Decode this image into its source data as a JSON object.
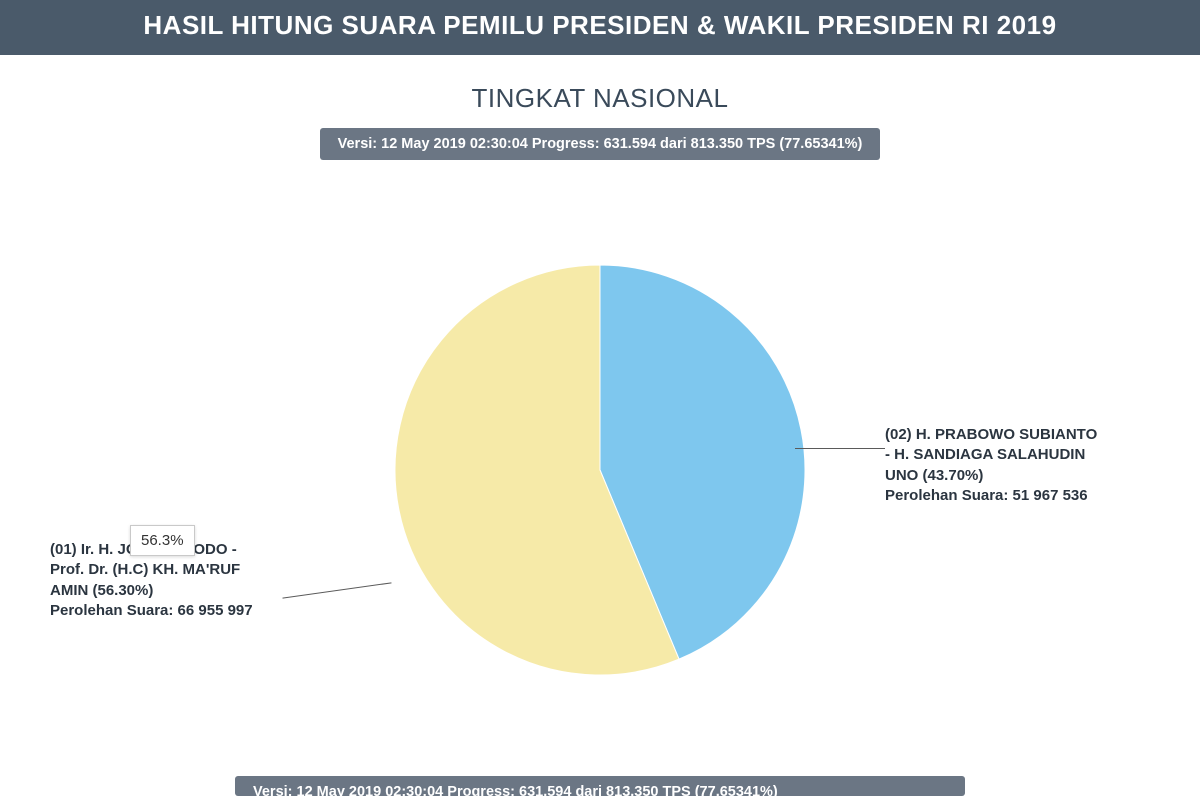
{
  "header": {
    "title": "HASIL HITUNG SUARA PEMILU PRESIDEN & WAKIL PRESIDEN RI 2019"
  },
  "subtitle": "TINGKAT NASIONAL",
  "progress_bar": {
    "text": "Versi: 12 May 2019 02:30:04 Progress: 631.594 dari 813.350 TPS (77.65341%)"
  },
  "pie_chart": {
    "type": "pie",
    "radius": 205,
    "background_color": "#ffffff",
    "stroke_color": "#ffffff",
    "stroke_width": 1,
    "slices": [
      {
        "id": "candidate01",
        "pct": 56.3,
        "color": "#f6eaa8",
        "label_lines": [
          "(01) Ir. H. JOKO WIDODO -",
          "Prof. Dr. (H.C) KH. MA'RUF",
          "AMIN (56.30%)"
        ],
        "votes_line": "Perolehan Suara: 66 955 997"
      },
      {
        "id": "candidate02",
        "pct": 43.7,
        "color": "#7ec7ee",
        "label_lines": [
          "(02) H. PRABOWO SUBIANTO",
          "- H. SANDIAGA SALAHUDIN",
          "UNO (43.70%)"
        ],
        "votes_line": "Perolehan Suara: 51 967 536"
      }
    ],
    "tooltip_text": "56.3%",
    "label_fontsize": 15,
    "label_color": "#2b3540"
  },
  "bottom_bar": {
    "text": "Versi: 12 May 2019 02:30:04 Progress: 631.594 dari 813.350 TPS (77.65341%)"
  }
}
